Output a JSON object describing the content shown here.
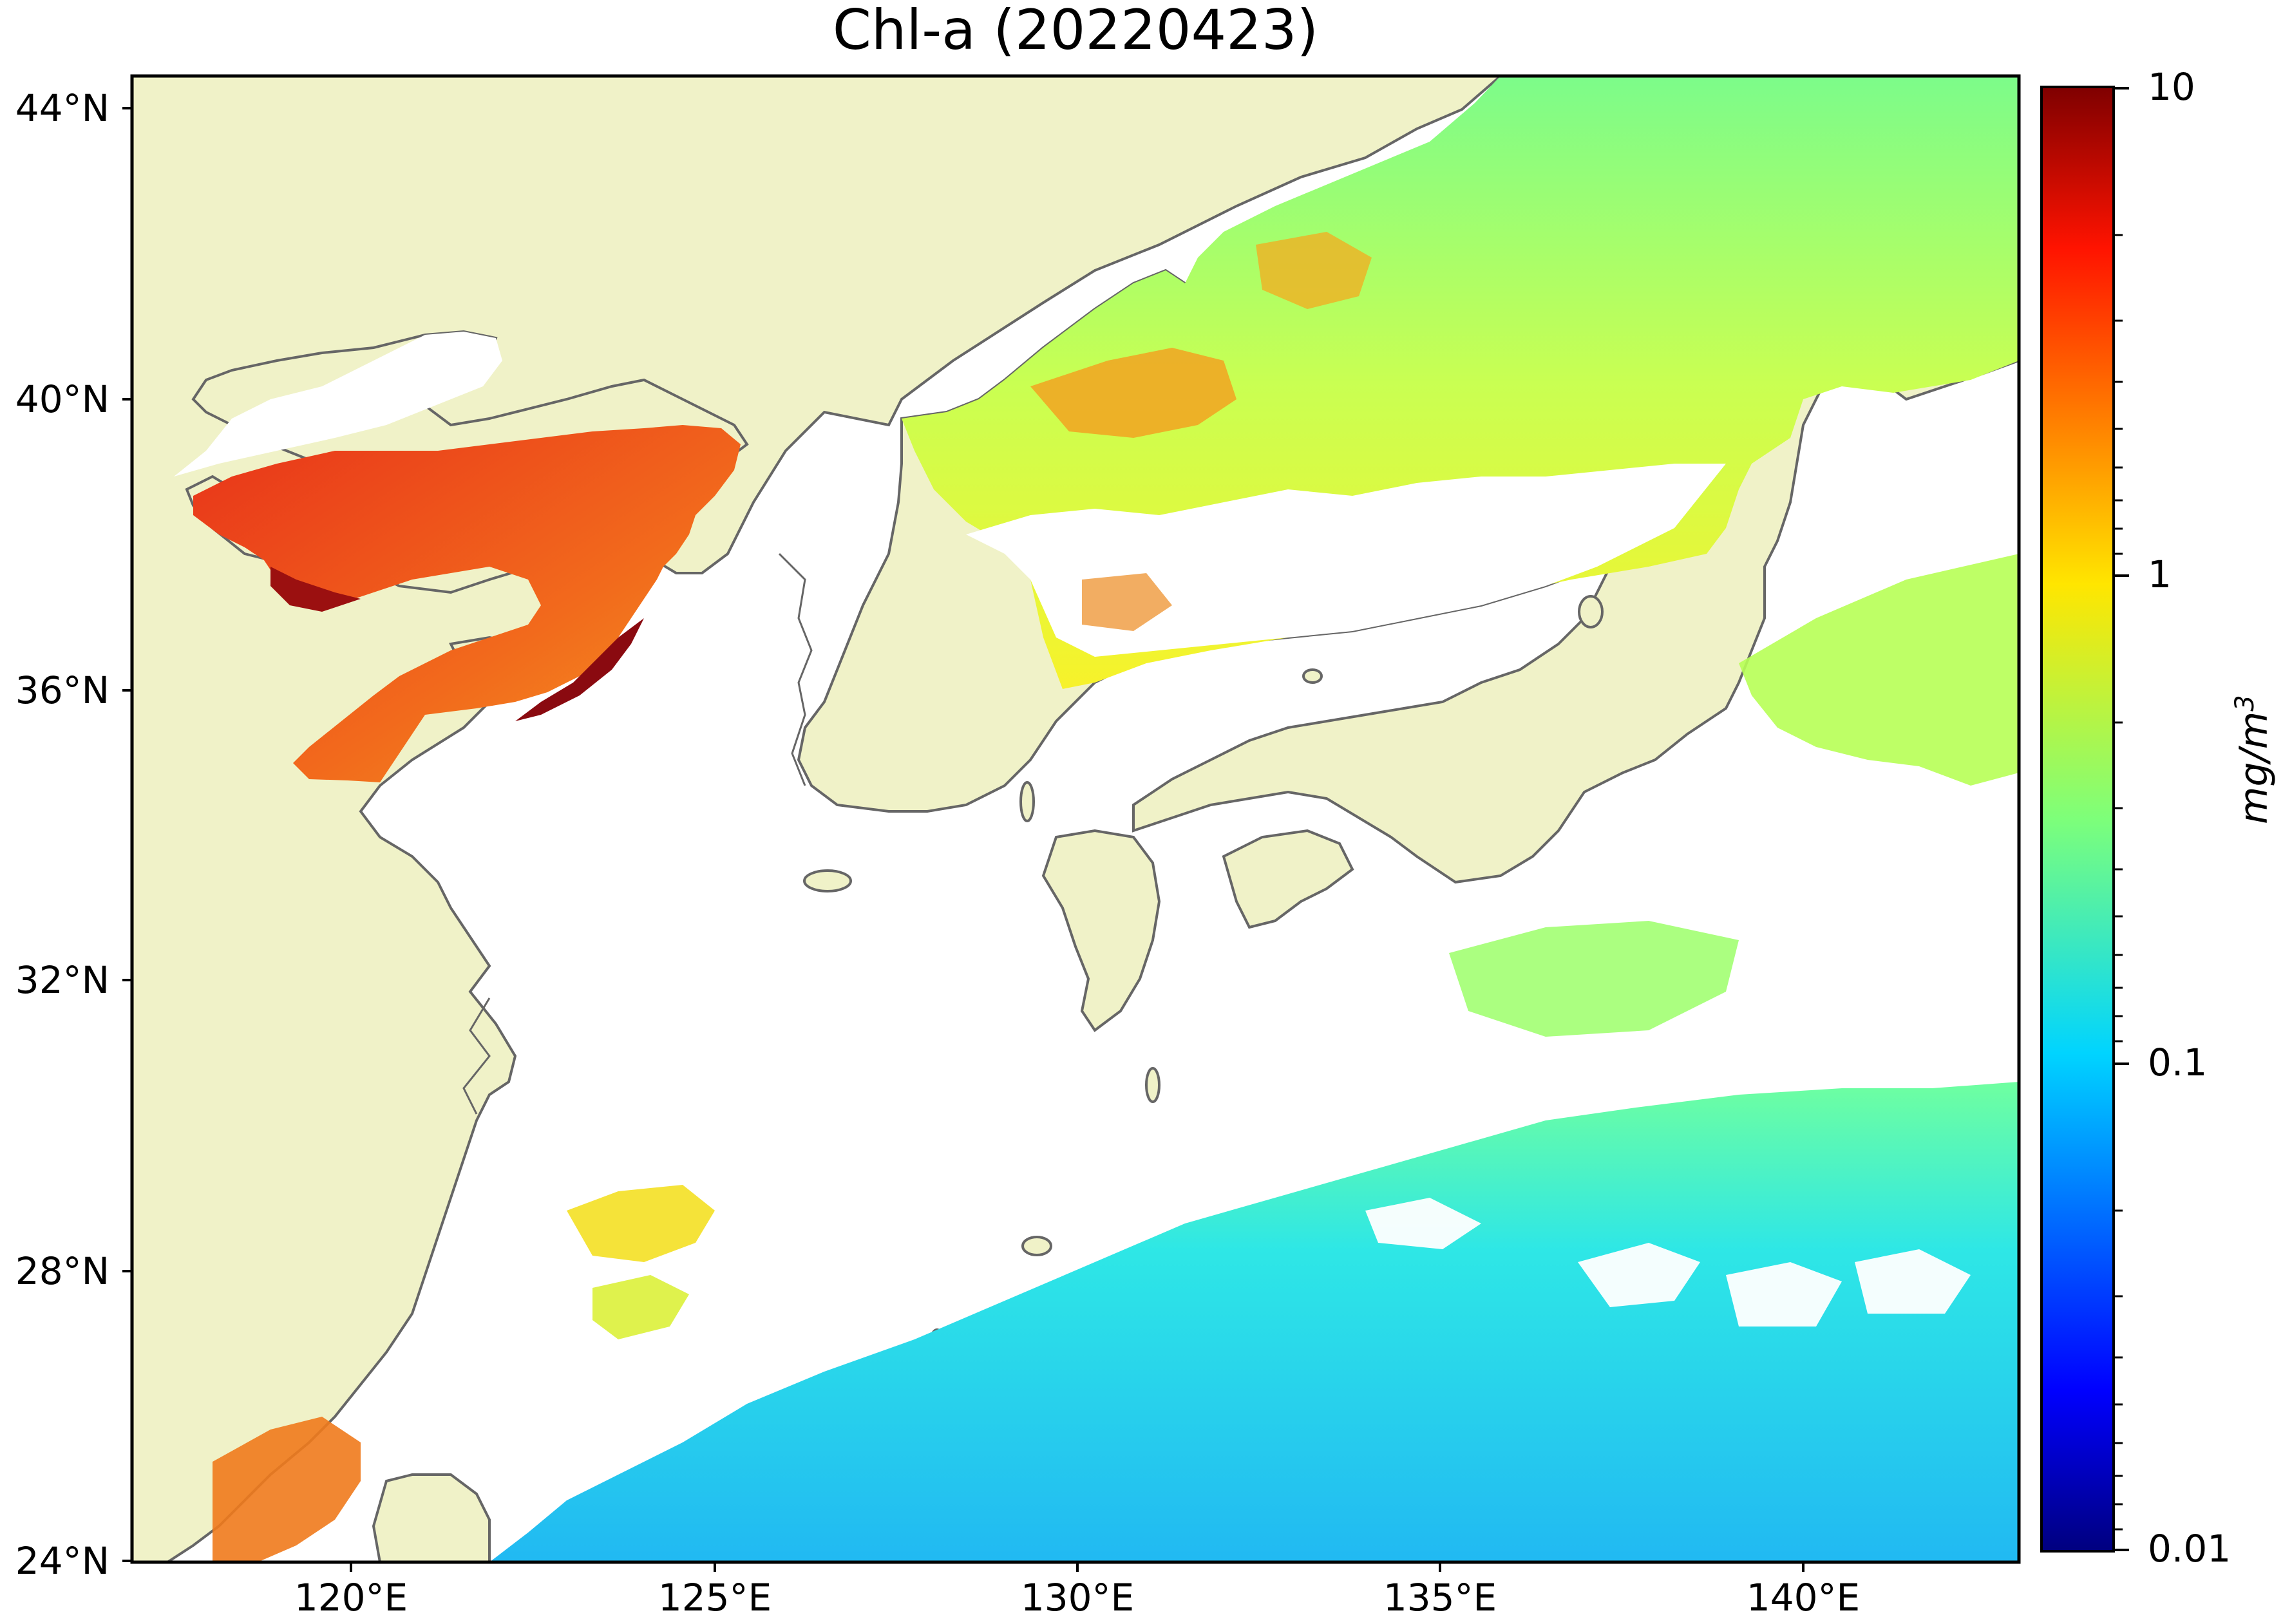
{
  "title": "Chl-a (20220423)",
  "map": {
    "lat_labels": [
      "44°N",
      "40°N",
      "36°N",
      "32°N",
      "28°N",
      "24°N"
    ],
    "lon_labels": [
      "120°E",
      "125°E",
      "130°E",
      "135°E",
      "140°E"
    ],
    "lat_range": [
      24,
      44.5
    ],
    "lon_range": [
      117,
      143
    ]
  },
  "colorbar": {
    "ticks": [
      "10",
      "1",
      "0.1",
      "0.01"
    ],
    "unit_base": "mg/m",
    "unit_exp": "3",
    "scale": "log",
    "range": [
      0.01,
      10
    ],
    "colormap": "jet"
  },
  "colors": {
    "land": "#f0f2c8",
    "coastline": "#666666",
    "no_data": "#ffffff"
  }
}
